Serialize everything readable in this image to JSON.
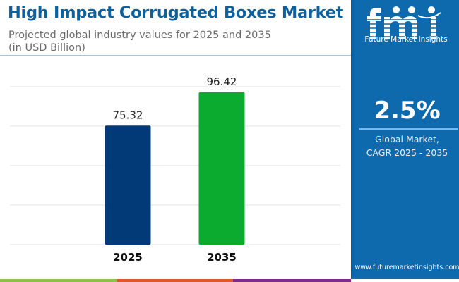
{
  "header": {
    "title": "High Impact Corrugated Boxes Market",
    "subtitle_line1": "Projected global industry values for 2025 and 2035",
    "subtitle_line2": "(in USD Billion)"
  },
  "side_panel": {
    "logo_letters": "fmi",
    "logo_name": "Future Market Insights",
    "cagr_value": "2.5%",
    "cagr_label_line1": "Global Market,",
    "cagr_label_line2": "CAGR 2025 - 2035",
    "website": "www.futuremarketinsights.com"
  },
  "colors": {
    "title": "#0e609c",
    "panel": "#0f6aad",
    "bar_2025": "#023a78",
    "bar_2035": "#0aab2f",
    "strip": [
      "#8bc34a",
      "#e2582c",
      "#7b2d8b",
      "#0f6aad"
    ]
  },
  "chart_data": {
    "type": "bar",
    "title": "High Impact Corrugated Boxes Market",
    "subtitle": "Projected global industry values for 2025 and 2035 (in USD Billion)",
    "categories": [
      "2025",
      "2035"
    ],
    "values": [
      75.32,
      96.42
    ],
    "value_labels": [
      "75.32",
      "96.42"
    ],
    "xlabel": "",
    "ylabel": "USD Billion",
    "ylim": [
      0,
      100
    ],
    "gridlines": [
      25,
      50,
      75,
      100
    ],
    "grid": true,
    "legend": "none"
  }
}
